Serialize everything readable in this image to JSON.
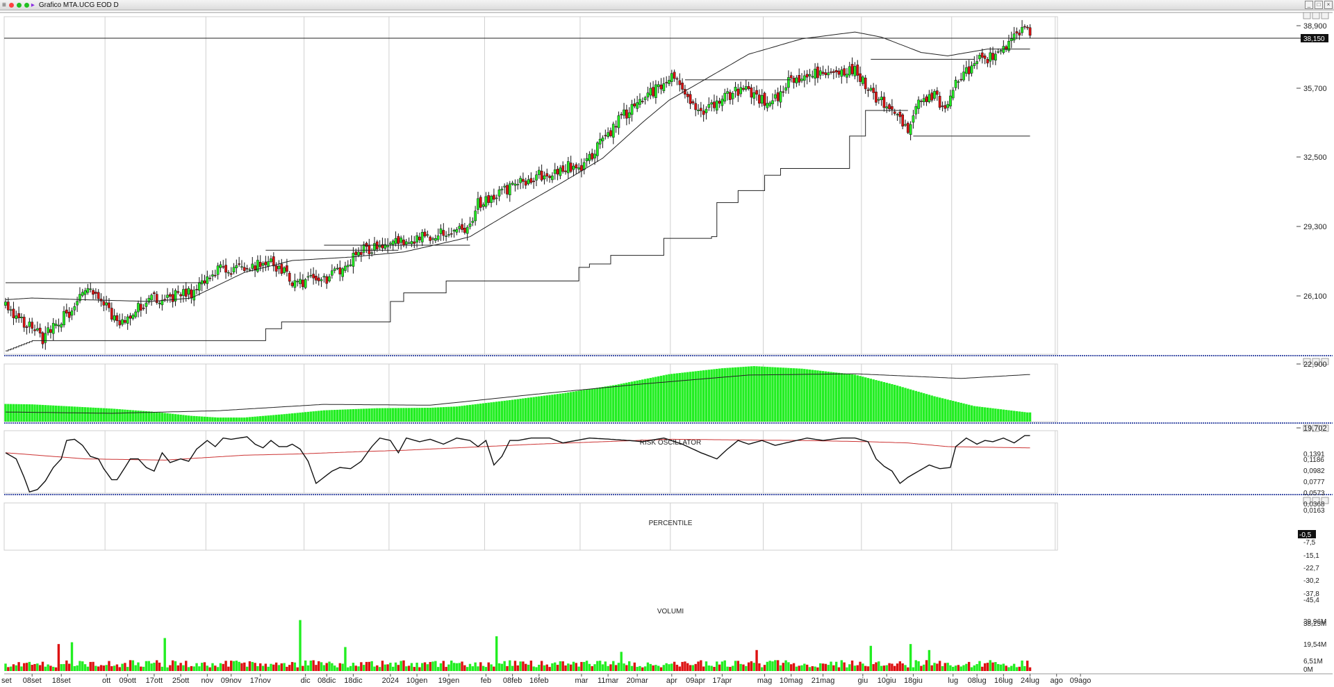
{
  "window": {
    "title": "Grafico MTA.UCG EOD D",
    "menu_icon": "menu-icon",
    "status_colors": [
      "#ff4040",
      "#20c020",
      "#20c020"
    ],
    "nav_icon": "arrow-right-icon",
    "buttons": [
      "_",
      "□",
      "×"
    ]
  },
  "colors": {
    "up": "#22ee22",
    "down": "#dd1111",
    "line": "#222222",
    "percentile_ma": "#cc3333",
    "separator": "#4455aa"
  },
  "chart_data": [
    {
      "type": "candlestick",
      "panel": "price",
      "yticks": [
        "38,900",
        "35,700",
        "32,500",
        "29,300",
        "26,100",
        "22,900",
        "19,702"
      ],
      "ylim": [
        19.702,
        39.5
      ],
      "last_price_label": "38,150",
      "close_anchors": [
        [
          0,
          22.6
        ],
        [
          14,
          20.6
        ],
        [
          24,
          22.2
        ],
        [
          30,
          23.6
        ],
        [
          38,
          22.4
        ],
        [
          42,
          21.6
        ],
        [
          55,
          22.9
        ],
        [
          70,
          23.3
        ],
        [
          80,
          24.6
        ],
        [
          92,
          24.9
        ],
        [
          100,
          25.0
        ],
        [
          104,
          24.7
        ],
        [
          108,
          23.8
        ],
        [
          122,
          24.2
        ],
        [
          135,
          25.8
        ],
        [
          150,
          26.3
        ],
        [
          165,
          26.9
        ],
        [
          175,
          27.1
        ],
        [
          177,
          28.4
        ],
        [
          190,
          29.5
        ],
        [
          210,
          30.7
        ],
        [
          218,
          30.8
        ],
        [
          222,
          31.6
        ],
        [
          232,
          33.6
        ],
        [
          238,
          34.3
        ],
        [
          250,
          36.0
        ],
        [
          256,
          35.1
        ],
        [
          262,
          34.0
        ],
        [
          270,
          34.8
        ],
        [
          278,
          35.2
        ],
        [
          288,
          34.3
        ],
        [
          296,
          35.8
        ],
        [
          304,
          36.1
        ],
        [
          314,
          36.3
        ],
        [
          320,
          36.4
        ],
        [
          327,
          34.8
        ],
        [
          332,
          34.4
        ],
        [
          336,
          33.8
        ],
        [
          340,
          33.0
        ],
        [
          344,
          34.7
        ],
        [
          350,
          34.8
        ],
        [
          354,
          34.1
        ],
        [
          358,
          35.8
        ],
        [
          366,
          36.9
        ],
        [
          374,
          37.2
        ],
        [
          380,
          38.3
        ],
        [
          384,
          38.7
        ]
      ],
      "moving_average_anchors": [
        [
          0,
          22.9
        ],
        [
          10,
          23.0
        ],
        [
          30,
          22.9
        ],
        [
          55,
          22.8
        ],
        [
          70,
          23.0
        ],
        [
          90,
          24.5
        ],
        [
          108,
          25.2
        ],
        [
          130,
          25.4
        ],
        [
          150,
          25.7
        ],
        [
          170,
          26.4
        ],
        [
          175,
          26.6
        ],
        [
          190,
          28.0
        ],
        [
          210,
          29.8
        ],
        [
          225,
          31.2
        ],
        [
          240,
          33.3
        ],
        [
          250,
          34.6
        ],
        [
          260,
          35.5
        ],
        [
          280,
          37.3
        ],
        [
          300,
          38.2
        ],
        [
          320,
          38.6
        ],
        [
          330,
          38.3
        ],
        [
          345,
          37.4
        ],
        [
          355,
          37.2
        ],
        [
          370,
          37.6
        ],
        [
          384,
          37.6
        ]
      ],
      "stop_line_steps": [
        [
          0,
          19.9
        ],
        [
          10,
          20.5
        ],
        [
          94,
          20.5
        ],
        [
          98,
          21.2
        ],
        [
          104,
          21.6
        ],
        [
          125,
          21.6
        ],
        [
          145,
          22.8
        ],
        [
          150,
          23.3
        ],
        [
          166,
          24.0
        ],
        [
          212,
          24.0
        ],
        [
          216,
          24.8
        ],
        [
          220,
          25.0
        ],
        [
          228,
          25.5
        ],
        [
          248,
          26.5
        ],
        [
          266,
          26.6
        ],
        [
          268,
          28.6
        ],
        [
          276,
          29.3
        ],
        [
          286,
          30.2
        ],
        [
          292,
          30.6
        ],
        [
          310,
          30.6
        ],
        [
          318,
          32.5
        ],
        [
          324,
          34.0
        ],
        [
          340,
          34.0
        ]
      ],
      "resistance_segments": [
        {
          "from": 0,
          "to": 74,
          "value": 23.9
        },
        {
          "from": 98,
          "to": 148,
          "value": 25.8
        },
        {
          "from": 120,
          "to": 175,
          "value": 26.1
        },
        {
          "from": 256,
          "to": 296,
          "value": 35.8
        },
        {
          "from": 326,
          "to": 365,
          "value": 37.0
        },
        {
          "from": 342,
          "to": 386,
          "value": 32.5
        }
      ]
    },
    {
      "type": "bar",
      "panel": "oscillator",
      "title": "RISK OSCILLATOR",
      "yticks": [
        "0,1391",
        "0,1186",
        "0,0982",
        "0,0777",
        "0,0573",
        "0,0368",
        "0,0163"
      ],
      "ylim": [
        0.0163,
        0.152
      ],
      "anchors": [
        [
          0,
          0.058
        ],
        [
          10,
          0.057
        ],
        [
          25,
          0.052
        ],
        [
          40,
          0.047
        ],
        [
          55,
          0.04
        ],
        [
          70,
          0.03
        ],
        [
          80,
          0.026
        ],
        [
          90,
          0.026
        ],
        [
          105,
          0.034
        ],
        [
          120,
          0.043
        ],
        [
          140,
          0.048
        ],
        [
          160,
          0.049
        ],
        [
          170,
          0.052
        ],
        [
          190,
          0.067
        ],
        [
          210,
          0.083
        ],
        [
          230,
          0.103
        ],
        [
          250,
          0.128
        ],
        [
          270,
          0.142
        ],
        [
          282,
          0.147
        ],
        [
          300,
          0.141
        ],
        [
          320,
          0.127
        ],
        [
          335,
          0.103
        ],
        [
          350,
          0.076
        ],
        [
          365,
          0.053
        ],
        [
          385,
          0.038
        ]
      ],
      "line_anchors": [
        [
          0,
          0.039
        ],
        [
          40,
          0.036
        ],
        [
          80,
          0.042
        ],
        [
          120,
          0.057
        ],
        [
          160,
          0.055
        ],
        [
          200,
          0.081
        ],
        [
          240,
          0.105
        ],
        [
          280,
          0.126
        ],
        [
          320,
          0.129
        ],
        [
          360,
          0.118
        ],
        [
          385,
          0.127
        ]
      ]
    },
    {
      "type": "line",
      "panel": "percentile",
      "title": "PERCENTILE",
      "yticks": [
        "-7,5",
        "-15,1",
        "-22,7",
        "-30,2",
        "-37,8",
        "-45,4"
      ],
      "ylim": [
        -48,
        3
      ],
      "last_value_label": "-0,5",
      "anchors": [
        [
          0,
          -15
        ],
        [
          4,
          -20
        ],
        [
          7,
          -35
        ],
        [
          9,
          -47
        ],
        [
          12,
          -45
        ],
        [
          15,
          -38
        ],
        [
          18,
          -27
        ],
        [
          21,
          -20
        ],
        [
          23,
          -5
        ],
        [
          26,
          -4
        ],
        [
          29,
          -9
        ],
        [
          32,
          -18
        ],
        [
          35,
          -20
        ],
        [
          37,
          -28
        ],
        [
          40,
          -37
        ],
        [
          42,
          -37
        ],
        [
          45,
          -27
        ],
        [
          47,
          -20
        ],
        [
          50,
          -20
        ],
        [
          53,
          -27
        ],
        [
          56,
          -30
        ],
        [
          59,
          -15
        ],
        [
          62,
          -23
        ],
        [
          66,
          -20
        ],
        [
          69,
          -22
        ],
        [
          72,
          -12
        ],
        [
          76,
          -5
        ],
        [
          79,
          -10
        ],
        [
          82,
          -3
        ],
        [
          85,
          -4
        ],
        [
          88,
          -3
        ],
        [
          91,
          -2
        ],
        [
          94,
          -8
        ],
        [
          97,
          -11
        ],
        [
          100,
          -5
        ],
        [
          103,
          -10
        ],
        [
          106,
          -10
        ],
        [
          108,
          -8
        ],
        [
          111,
          -12
        ],
        [
          114,
          -22
        ],
        [
          117,
          -40
        ],
        [
          120,
          -35
        ],
        [
          123,
          -30
        ],
        [
          126,
          -27
        ],
        [
          130,
          -28
        ],
        [
          134,
          -22
        ],
        [
          138,
          -10
        ],
        [
          141,
          -3
        ],
        [
          145,
          -5
        ],
        [
          148,
          -15
        ],
        [
          151,
          -3
        ],
        [
          156,
          -6
        ],
        [
          160,
          -4
        ],
        [
          165,
          -8
        ],
        [
          170,
          -3
        ],
        [
          175,
          -5
        ],
        [
          178,
          -10
        ],
        [
          181,
          -5
        ],
        [
          184,
          -25
        ],
        [
          187,
          -18
        ],
        [
          190,
          -5
        ],
        [
          193,
          -5
        ],
        [
          198,
          -3
        ],
        [
          205,
          -3
        ],
        [
          210,
          -7
        ],
        [
          215,
          -5
        ],
        [
          220,
          -3
        ],
        [
          228,
          -4
        ],
        [
          235,
          -5
        ],
        [
          240,
          -6
        ],
        [
          248,
          -3
        ],
        [
          255,
          -8
        ],
        [
          262,
          -15
        ],
        [
          268,
          -20
        ],
        [
          272,
          -12
        ],
        [
          276,
          -5
        ],
        [
          280,
          -8
        ],
        [
          285,
          -5
        ],
        [
          290,
          -9
        ],
        [
          296,
          -6
        ],
        [
          302,
          -3
        ],
        [
          308,
          -5
        ],
        [
          315,
          -3
        ],
        [
          320,
          -3
        ],
        [
          325,
          -6
        ],
        [
          328,
          -20
        ],
        [
          331,
          -26
        ],
        [
          334,
          -30
        ],
        [
          337,
          -40
        ],
        [
          340,
          -35
        ],
        [
          344,
          -30
        ],
        [
          348,
          -25
        ],
        [
          352,
          -28
        ],
        [
          356,
          -27
        ],
        [
          358,
          -10
        ],
        [
          362,
          -3
        ],
        [
          366,
          -8
        ],
        [
          369,
          -5
        ],
        [
          372,
          -6
        ],
        [
          376,
          -3
        ],
        [
          380,
          -7
        ],
        [
          384,
          -1
        ]
      ],
      "ma_anchors": [
        [
          0,
          -15
        ],
        [
          30,
          -20
        ],
        [
          60,
          -21
        ],
        [
          90,
          -17
        ],
        [
          110,
          -16
        ],
        [
          135,
          -14
        ],
        [
          150,
          -13
        ],
        [
          200,
          -8
        ],
        [
          250,
          -4
        ],
        [
          300,
          -5
        ],
        [
          325,
          -6
        ],
        [
          340,
          -7
        ],
        [
          355,
          -10
        ],
        [
          385,
          -11
        ]
      ]
    },
    {
      "type": "bar",
      "panel": "volume",
      "title": "VOLUMI",
      "yticks": [
        "39,96M",
        "38,25M",
        "19,54M",
        "6,51M",
        "0M"
      ],
      "ylim": [
        0,
        95
      ],
      "base_volume": 11,
      "spikes": [
        [
          20,
          45
        ],
        [
          25,
          48
        ],
        [
          60,
          55
        ],
        [
          111,
          85
        ],
        [
          128,
          40
        ],
        [
          185,
          58
        ],
        [
          232,
          32
        ],
        [
          283,
          35
        ],
        [
          326,
          42
        ],
        [
          341,
          45
        ],
        [
          348,
          35
        ]
      ]
    }
  ],
  "x_axis": {
    "labels": [
      {
        "bar": -2,
        "text": "set"
      },
      {
        "bar": 10,
        "text": "08set"
      },
      {
        "bar": 21,
        "text": "18set"
      },
      {
        "bar": 38,
        "text": "ott"
      },
      {
        "bar": 46,
        "text": "09ott"
      },
      {
        "bar": 56,
        "text": "17ott"
      },
      {
        "bar": 66,
        "text": "25ott"
      },
      {
        "bar": 76,
        "text": "nov"
      },
      {
        "bar": 85,
        "text": "09nov"
      },
      {
        "bar": 96,
        "text": "17nov"
      },
      {
        "bar": 113,
        "text": "dic"
      },
      {
        "bar": 121,
        "text": "08dic"
      },
      {
        "bar": 131,
        "text": "18dic"
      },
      {
        "bar": 145,
        "text": "2024"
      },
      {
        "bar": 155,
        "text": "10gen"
      },
      {
        "bar": 167,
        "text": "19gen"
      },
      {
        "bar": 181,
        "text": "feb"
      },
      {
        "bar": 191,
        "text": "08feb"
      },
      {
        "bar": 201,
        "text": "16feb"
      },
      {
        "bar": 217,
        "text": "mar"
      },
      {
        "bar": 227,
        "text": "11mar"
      },
      {
        "bar": 238,
        "text": "20mar"
      },
      {
        "bar": 251,
        "text": "apr"
      },
      {
        "bar": 260,
        "text": "09apr"
      },
      {
        "bar": 270,
        "text": "17apr"
      },
      {
        "bar": 286,
        "text": "mag"
      },
      {
        "bar": 296,
        "text": "10mag"
      },
      {
        "bar": 308,
        "text": "21mag"
      },
      {
        "bar": 323,
        "text": "giu"
      },
      {
        "bar": 332,
        "text": "10giu"
      },
      {
        "bar": 342,
        "text": "18giu"
      },
      {
        "bar": 357,
        "text": "lug"
      },
      {
        "bar": 366,
        "text": "08lug"
      },
      {
        "bar": 376,
        "text": "16lug"
      },
      {
        "bar": 386,
        "text": "24lug"
      },
      {
        "bar": 396,
        "text": "ago"
      },
      {
        "bar": 405,
        "text": "09ago"
      }
    ],
    "gridline_bars": [
      0,
      38,
      76,
      113,
      145,
      181,
      217,
      251,
      286,
      323,
      357,
      396
    ]
  }
}
